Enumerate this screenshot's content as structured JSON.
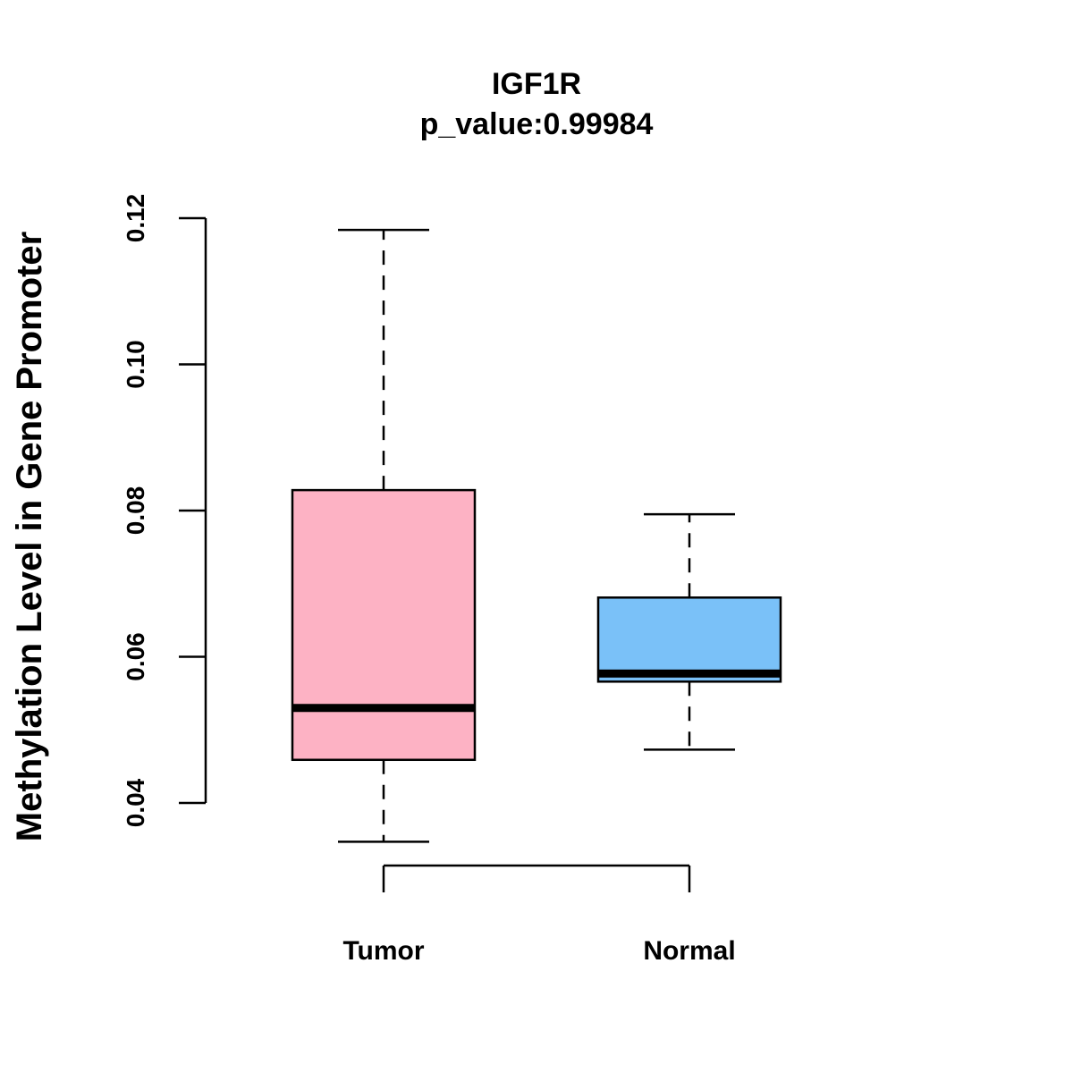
{
  "chart_data": {
    "type": "boxplot",
    "title": "IGF1R",
    "subtitle": "p_value:0.99984",
    "xlabel": "",
    "ylabel": "Methylation Level in Gene Promoter",
    "ylim": [
      0.04,
      0.12
    ],
    "yticks": [
      0.04,
      0.06,
      0.08,
      0.1,
      0.12
    ],
    "ytick_labels": [
      "0.04",
      "0.06",
      "0.08",
      "0.10",
      "0.12"
    ],
    "categories": [
      "Tumor",
      "Normal"
    ],
    "grid": false,
    "series": [
      {
        "name": "Tumor",
        "color": "#FDB2C4",
        "whisker_low": 0.0347,
        "q1": 0.0459,
        "median": 0.053,
        "q3": 0.0828,
        "whisker_high": 0.1184
      },
      {
        "name": "Normal",
        "color": "#7AC1F8",
        "whisker_low": 0.0473,
        "q1": 0.0566,
        "median": 0.0577,
        "q3": 0.0681,
        "whisker_high": 0.0795
      }
    ]
  }
}
